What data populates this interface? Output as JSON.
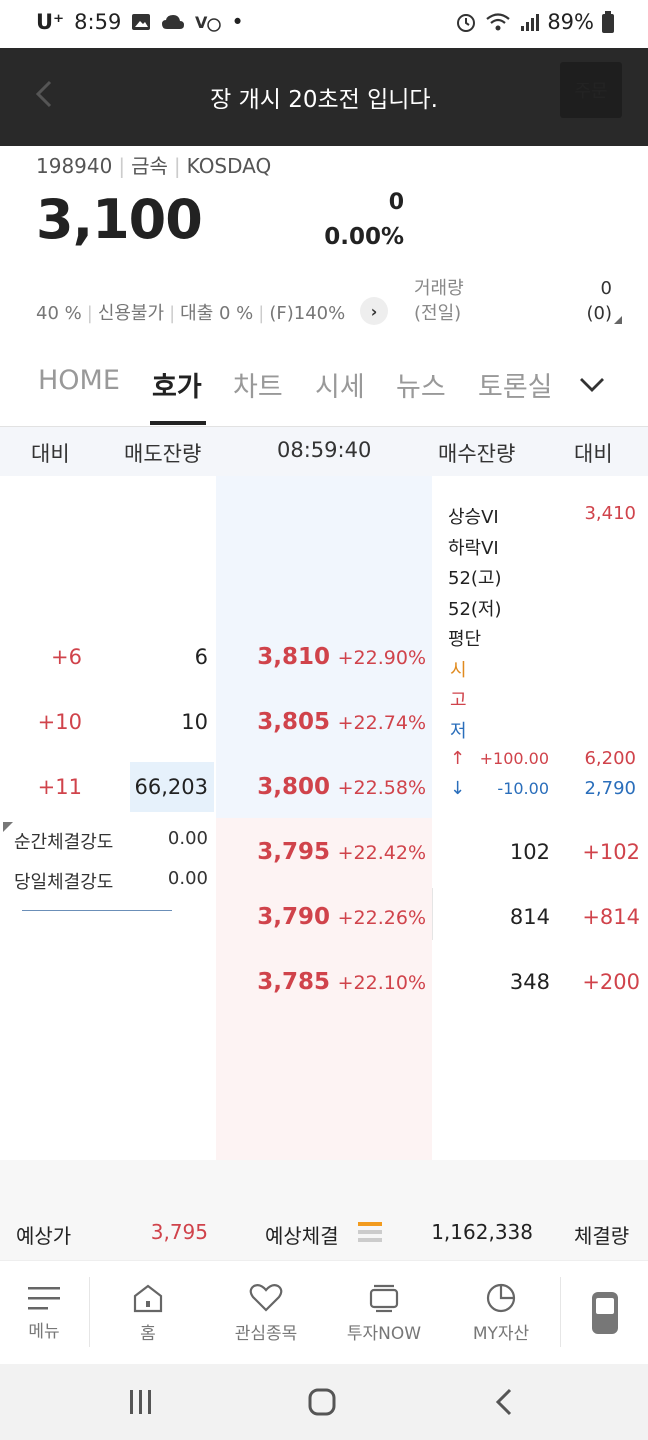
{
  "status_bar": {
    "carrier": "U⁺",
    "time": "8:59",
    "battery": "89%"
  },
  "toast": "장 개시 20초전 입니다.",
  "header": {
    "order_button": "주문"
  },
  "stock": {
    "code": "198940",
    "sector": "금속",
    "market": "KOSDAQ",
    "price": "3,100",
    "change": "0",
    "change_pct": "0.00%",
    "info_items": [
      "40 %",
      "신용불가",
      "대출 0 %",
      "(F)140%"
    ],
    "volume_label": "거래량",
    "volume_prev_label": "(전일)",
    "volume": "0",
    "volume_prev": "(0)"
  },
  "tabs": [
    "HOME",
    "호가",
    "차트",
    "시세",
    "뉴스",
    "토론실"
  ],
  "active_tab": "호가",
  "orderbook_header": {
    "left_diff": "대비",
    "ask_qty": "매도잔량",
    "time": "08:59:40",
    "bid_qty": "매수잔량",
    "right_diff": "대비"
  },
  "asks": [
    {
      "diff": "+6",
      "qty": "6",
      "price": "3,810",
      "rate": "+22.90%"
    },
    {
      "diff": "+10",
      "qty": "10",
      "price": "3,805",
      "rate": "+22.74%"
    },
    {
      "diff": "+11",
      "qty": "66,203",
      "price": "3,800",
      "rate": "+22.58%"
    }
  ],
  "bids": [
    {
      "price": "3,795",
      "rate": "+22.42%",
      "qty": "102",
      "diff": "+102"
    },
    {
      "price": "3,790",
      "rate": "+22.26%",
      "qty": "814",
      "diff": "+814"
    },
    {
      "price": "3,785",
      "rate": "+22.10%",
      "qty": "348",
      "diff": "+200"
    }
  ],
  "info_panel": {
    "upper_vi_label": "상승VI",
    "upper_vi": "3,410",
    "lower_vi_label": "하락VI",
    "high52_label": "52(고)",
    "low52_label": "52(저)",
    "avg_label": "평단",
    "open_label": "시",
    "high_label": "고",
    "low_label": "저",
    "upper_limit_arrow": "↑",
    "upper_limit_diff": "+100.00",
    "upper_limit": "6,200",
    "lower_limit_arrow": "↓",
    "lower_limit_diff": "-10.00",
    "lower_limit": "2,790"
  },
  "strength": {
    "instant_label": "순간체결강도",
    "instant": "0.00",
    "daily_label": "당일체결강도",
    "daily": "0.00"
  },
  "summary": {
    "expected_price_label": "예상가",
    "expected_price": "3,795",
    "expected_exec_label": "예상체결",
    "expected_volume": "1,162,338",
    "exec_volume_label": "체결량"
  },
  "bottom_nav": [
    "메뉴",
    "홈",
    "관심종목",
    "투자NOW",
    "MY자산"
  ],
  "colors": {
    "up": "#d0434b",
    "down": "#2a6ebb",
    "accent": "#e08a1e"
  }
}
